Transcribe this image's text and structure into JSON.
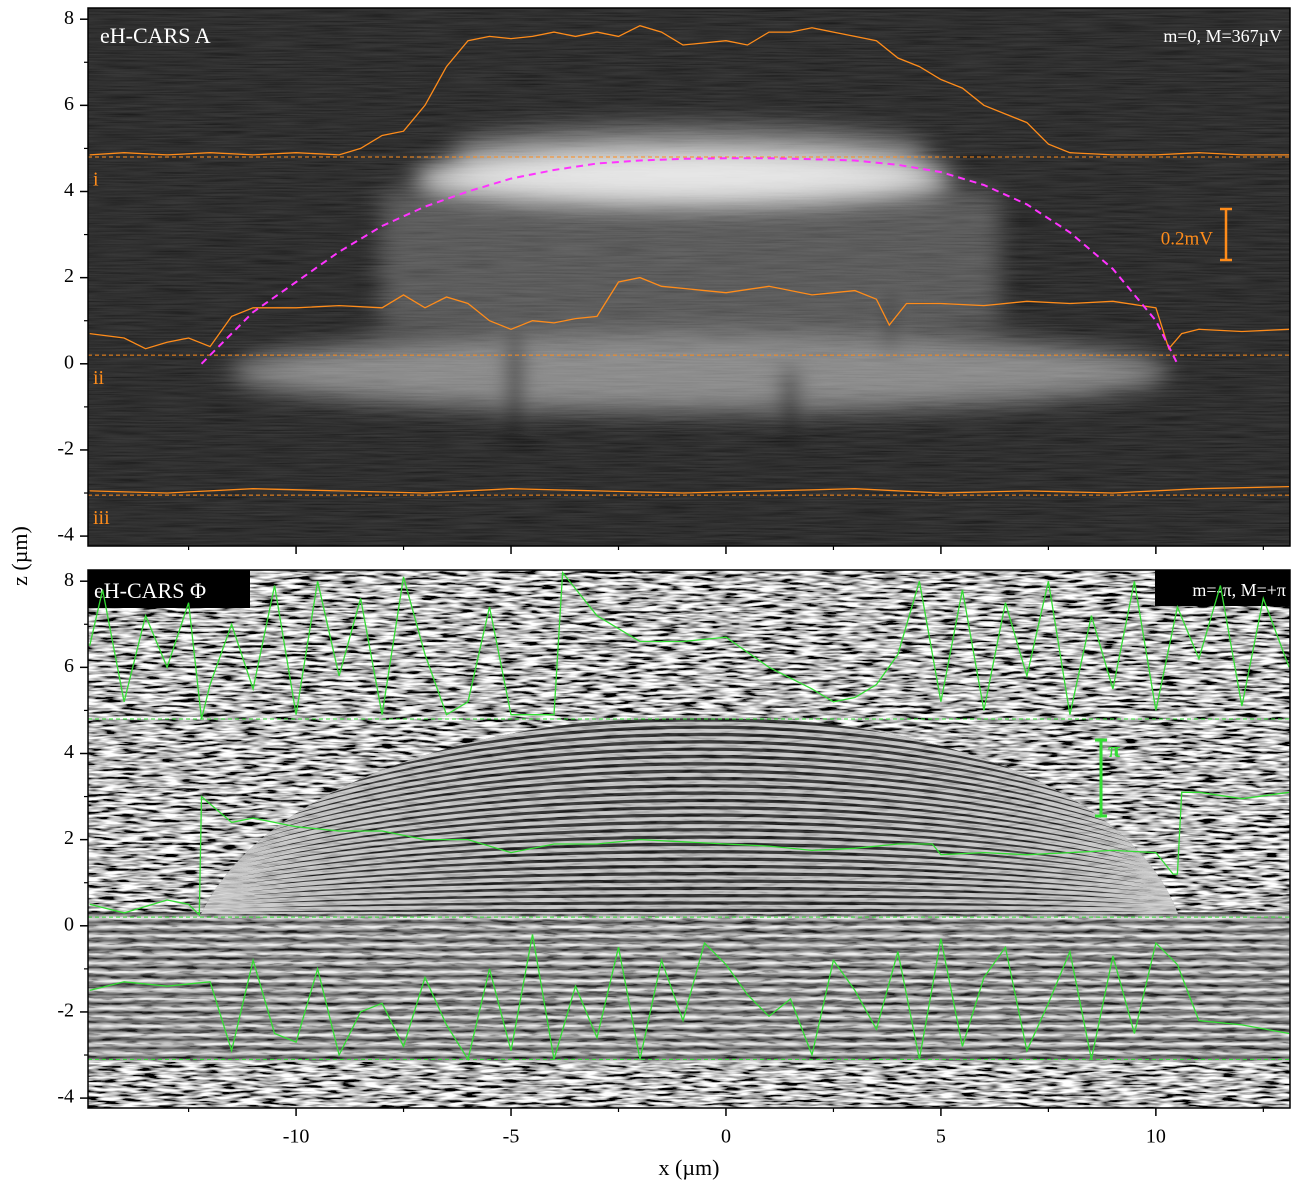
{
  "chart_data": [
    {
      "type": "line",
      "title": "eH-CARS A",
      "annotation": "m=0, M=367µV",
      "scale_label": "0.2mV",
      "ylabel": "z (µm)",
      "xlim": [
        -14.84,
        13.12
      ],
      "ylim": [
        -4.23,
        8.26
      ],
      "yticks": [
        -4,
        -2,
        0,
        2,
        4,
        6,
        8
      ],
      "yminor": [
        -3,
        -1,
        1,
        3,
        5,
        7
      ],
      "hlines": [
        4.8,
        0.2,
        -3.05
      ],
      "hline_color": "#ff8c1a",
      "series": [
        {
          "name": "i",
          "color": "#ff8c1a",
          "x": [
            -14.8,
            -14,
            -13,
            -12,
            -11,
            -10,
            -9,
            -8.5,
            -8,
            -7.5,
            -7,
            -6.5,
            -6,
            -5.5,
            -5,
            -4.5,
            -4,
            -3.5,
            -3,
            -2.5,
            -2,
            -1.5,
            -1,
            -0.5,
            0,
            0.5,
            1,
            1.5,
            2,
            2.5,
            3,
            3.5,
            4,
            4.5,
            5,
            5.5,
            6,
            6.5,
            7,
            7.5,
            8,
            9,
            10,
            11,
            12,
            13.1
          ],
          "values": [
            4.85,
            4.9,
            4.85,
            4.9,
            4.85,
            4.9,
            4.85,
            5.0,
            5.3,
            5.4,
            6.0,
            6.9,
            7.5,
            7.6,
            7.55,
            7.6,
            7.7,
            7.6,
            7.7,
            7.6,
            7.85,
            7.7,
            7.4,
            7.45,
            7.5,
            7.4,
            7.7,
            7.7,
            7.8,
            7.7,
            7.6,
            7.5,
            7.1,
            6.9,
            6.6,
            6.4,
            6.0,
            5.8,
            5.6,
            5.1,
            4.9,
            4.85,
            4.85,
            4.9,
            4.85,
            4.85
          ]
        },
        {
          "name": "ii",
          "color": "#ff8c1a",
          "x": [
            -14.8,
            -14,
            -13.5,
            -13,
            -12.5,
            -12,
            -11.5,
            -11,
            -10,
            -9,
            -8,
            -7.5,
            -7,
            -6.5,
            -6,
            -5.5,
            -5,
            -4.5,
            -4,
            -3.5,
            -3,
            -2.5,
            -2,
            -1.5,
            -1,
            0,
            1,
            2,
            3,
            3.5,
            3.8,
            4.2,
            5,
            6,
            7,
            8,
            9,
            10,
            10.3,
            10.6,
            11,
            12,
            13.1
          ],
          "values": [
            0.7,
            0.6,
            0.35,
            0.5,
            0.6,
            0.4,
            1.1,
            1.3,
            1.3,
            1.35,
            1.3,
            1.6,
            1.3,
            1.55,
            1.4,
            1.0,
            0.8,
            1.0,
            0.95,
            1.05,
            1.1,
            1.9,
            2.0,
            1.8,
            1.75,
            1.65,
            1.8,
            1.6,
            1.7,
            1.5,
            0.9,
            1.4,
            1.4,
            1.35,
            1.45,
            1.4,
            1.45,
            1.3,
            0.35,
            0.7,
            0.8,
            0.75,
            0.8
          ]
        },
        {
          "name": "iii",
          "color": "#ff8c1a",
          "x": [
            -14.8,
            -13,
            -11,
            -9,
            -7,
            -5,
            -3,
            -1,
            1,
            3,
            5,
            7,
            9,
            11,
            13.1
          ],
          "values": [
            -2.95,
            -3.0,
            -2.9,
            -2.95,
            -3.0,
            -2.9,
            -2.95,
            -3.0,
            -2.95,
            -2.9,
            -3.0,
            -2.95,
            -3.0,
            -2.9,
            -2.85
          ]
        },
        {
          "color": "#ff33ff",
          "dashed": true,
          "x": [
            -12.2,
            -11,
            -10,
            -9,
            -8,
            -7,
            -6,
            -5,
            -4,
            -3,
            -2,
            -1,
            0,
            1,
            2,
            3,
            4,
            5,
            6,
            7,
            8,
            9,
            10,
            10.5
          ],
          "values": [
            0,
            1.2,
            1.9,
            2.6,
            3.2,
            3.65,
            4.0,
            4.3,
            4.5,
            4.65,
            4.72,
            4.76,
            4.77,
            4.77,
            4.75,
            4.72,
            4.62,
            4.45,
            4.15,
            3.7,
            3.05,
            2.2,
            1.0,
            0
          ]
        }
      ]
    },
    {
      "type": "line",
      "title": "eH-CARS Φ",
      "annotation": "m=-π, M=+π",
      "scale_label": "π",
      "xlabel": "x (µm)",
      "xlim": [
        -14.84,
        13.12
      ],
      "ylim": [
        -4.23,
        8.26
      ],
      "xticks": [
        -10,
        -5,
        0,
        5,
        10
      ],
      "xminor": [
        -12.5,
        -7.5,
        -2.5,
        2.5,
        7.5,
        12.5
      ],
      "yticks": [
        -4,
        -2,
        0,
        2,
        4,
        6,
        8
      ],
      "yminor": [
        -3,
        -1,
        1,
        3,
        5,
        7
      ],
      "hlines": [
        4.8,
        0.2,
        -3.1
      ],
      "hline_color": "#33dd33",
      "series": [
        {
          "color": "#33dd33",
          "x": [
            -14.8,
            -14.5,
            -14,
            -13.5,
            -13,
            -12.5,
            -12.2,
            -12,
            -11.5,
            -11,
            -10.5,
            -10,
            -9.5,
            -9,
            -8.5,
            -8,
            -7.5,
            -7,
            -6.5,
            -6,
            -5.5,
            -5,
            -4.5,
            -4,
            -3.8,
            -3,
            -2,
            -1,
            0,
            1,
            2,
            2.5,
            3,
            3.5,
            4,
            4.5,
            5,
            5.5,
            6,
            6.5,
            7,
            7.5,
            8,
            8.5,
            9,
            9.5,
            10,
            10.5,
            11,
            11.5,
            12,
            12.5,
            13.1
          ],
          "values": [
            6.5,
            7.8,
            5.2,
            7.2,
            6.0,
            7.5,
            4.8,
            5.6,
            7.0,
            5.5,
            7.9,
            4.9,
            8.0,
            5.8,
            7.6,
            4.9,
            8.1,
            6.3,
            4.9,
            5.2,
            7.4,
            4.9,
            4.9,
            4.9,
            8.2,
            7.2,
            6.6,
            6.6,
            6.7,
            6.0,
            5.5,
            5.2,
            5.3,
            5.6,
            6.3,
            8.0,
            5.2,
            7.8,
            5.0,
            7.5,
            5.8,
            8.0,
            4.9,
            7.2,
            5.5,
            8.0,
            5.0,
            7.4,
            6.2,
            7.9,
            5.1,
            7.6,
            6.0
          ]
        },
        {
          "color": "#33dd33",
          "x": [
            -14.8,
            -14,
            -13,
            -12.5,
            -12.25,
            -12.2,
            -11.5,
            -11,
            -10,
            -9,
            -8,
            -7,
            -6,
            -5,
            -4,
            -3,
            -2,
            -1,
            0,
            1,
            2,
            3,
            4,
            4.8,
            5,
            6,
            7,
            8,
            9,
            10,
            10.4,
            10.5,
            10.6,
            11,
            12,
            13.1
          ],
          "values": [
            0.5,
            0.3,
            0.6,
            0.5,
            0.25,
            3.0,
            2.4,
            2.5,
            2.3,
            2.2,
            2.2,
            2.0,
            2.0,
            1.7,
            1.9,
            1.9,
            2.0,
            1.95,
            1.9,
            1.85,
            1.75,
            1.8,
            1.9,
            1.9,
            1.65,
            1.7,
            1.65,
            1.7,
            1.75,
            1.7,
            1.2,
            1.2,
            3.1,
            3.1,
            2.95,
            3.1
          ]
        },
        {
          "color": "#33dd33",
          "x": [
            -14.8,
            -14,
            -13,
            -12,
            -11.5,
            -11,
            -10.5,
            -10,
            -9.5,
            -9,
            -8.5,
            -8,
            -7.5,
            -7,
            -6.5,
            -6,
            -5.5,
            -5,
            -4.5,
            -4,
            -3.5,
            -3,
            -2.5,
            -2,
            -1.5,
            -1,
            -0.5,
            0,
            0.5,
            1,
            1.5,
            2,
            2.5,
            3,
            3.5,
            4,
            4.5,
            5,
            5.5,
            6,
            6.5,
            7,
            7.5,
            8,
            8.5,
            9,
            9.5,
            10,
            10.5,
            11,
            12,
            13.1
          ],
          "values": [
            -1.5,
            -1.3,
            -1.4,
            -1.3,
            -2.9,
            -0.8,
            -2.5,
            -2.7,
            -1.0,
            -3.0,
            -2.0,
            -1.8,
            -2.8,
            -1.2,
            -2.3,
            -3.1,
            -1.0,
            -2.9,
            -0.2,
            -3.1,
            -1.4,
            -2.6,
            -0.5,
            -3.1,
            -0.8,
            -2.2,
            -0.4,
            -0.9,
            -1.6,
            -2.1,
            -1.7,
            -3.0,
            -0.8,
            -1.5,
            -2.4,
            -0.6,
            -3.1,
            -0.3,
            -2.8,
            -1.2,
            -0.5,
            -2.9,
            -1.8,
            -0.6,
            -3.1,
            -0.7,
            -2.5,
            -0.4,
            -0.9,
            -2.2,
            -2.3,
            -2.5
          ]
        }
      ]
    }
  ]
}
